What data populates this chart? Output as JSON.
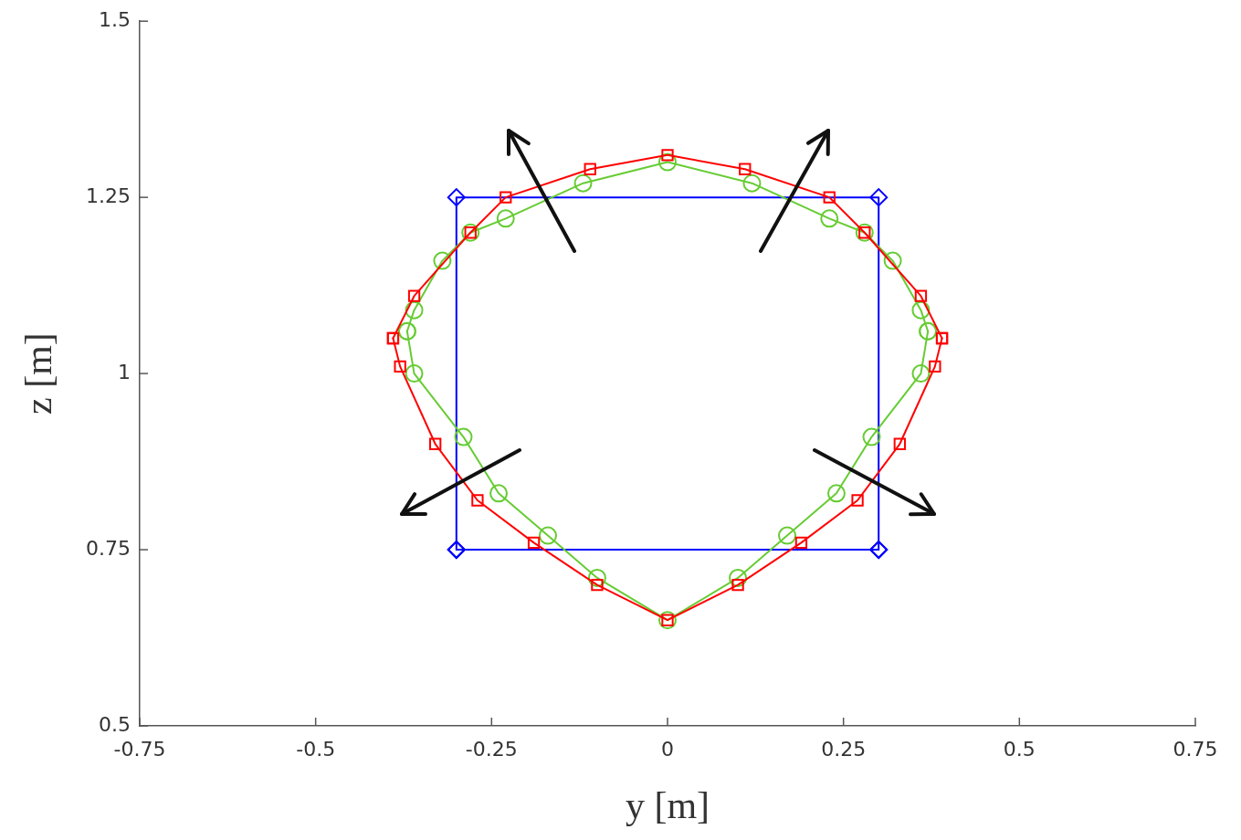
{
  "chart_data": {
    "type": "line",
    "xlabel": "y [m]",
    "ylabel": "z [m]",
    "xlim": [
      -0.75,
      0.75
    ],
    "ylim": [
      0.5,
      1.5
    ],
    "xticks": [
      -0.75,
      -0.5,
      -0.25,
      0,
      0.25,
      0.5,
      0.75
    ],
    "yticks": [
      0.5,
      0.75,
      1,
      1.25,
      1.5
    ],
    "line_style": "solid",
    "series": [
      {
        "color": "#0000ff",
        "marker": "diamond",
        "x": [
          -0.3,
          -0.3,
          0.3,
          0.3
        ],
        "values": [
          0.75,
          1.25,
          1.25,
          0.75
        ]
      },
      {
        "color": "#0000ff",
        "marker": "diamond",
        "x": [
          -0.3,
          0.3
        ],
        "values": [
          0.75,
          0.75
        ]
      },
      {
        "color": "#66cc33",
        "marker": "circle",
        "x": [
          -0.37,
          -0.36,
          -0.32,
          -0.28,
          -0.23,
          -0.12,
          0,
          0.12,
          0.23,
          0.28,
          0.32,
          0.36,
          0.37
        ],
        "values": [
          1.06,
          1.09,
          1.16,
          1.2,
          1.22,
          1.27,
          1.3,
          1.27,
          1.22,
          1.2,
          1.16,
          1.09,
          1.06
        ]
      },
      {
        "color": "#66cc33",
        "marker": "circle",
        "x": [
          -0.37,
          -0.36,
          -0.29,
          -0.24,
          -0.17,
          -0.1,
          0,
          0.1,
          0.17,
          0.24,
          0.29,
          0.36,
          0.37
        ],
        "values": [
          1.06,
          1.0,
          0.91,
          0.83,
          0.77,
          0.71,
          0.65,
          0.71,
          0.77,
          0.83,
          0.91,
          1.0,
          1.06
        ]
      },
      {
        "color": "#ff0000",
        "marker": "square",
        "x": [
          -0.39,
          -0.36,
          -0.28,
          -0.23,
          -0.11,
          0,
          0.11,
          0.23,
          0.28,
          0.36,
          0.39
        ],
        "values": [
          1.05,
          1.11,
          1.2,
          1.25,
          1.29,
          1.31,
          1.29,
          1.25,
          1.2,
          1.11,
          1.05
        ]
      },
      {
        "color": "#ff0000",
        "marker": "square",
        "x": [
          -0.39,
          -0.38,
          -0.33,
          -0.27,
          -0.19,
          -0.1,
          0,
          0.1,
          0.19,
          0.27,
          0.33,
          0.38,
          0.39
        ],
        "values": [
          1.05,
          1.01,
          0.9,
          0.82,
          0.76,
          0.7,
          0.65,
          0.7,
          0.76,
          0.82,
          0.9,
          1.01,
          1.05
        ]
      }
    ]
  }
}
